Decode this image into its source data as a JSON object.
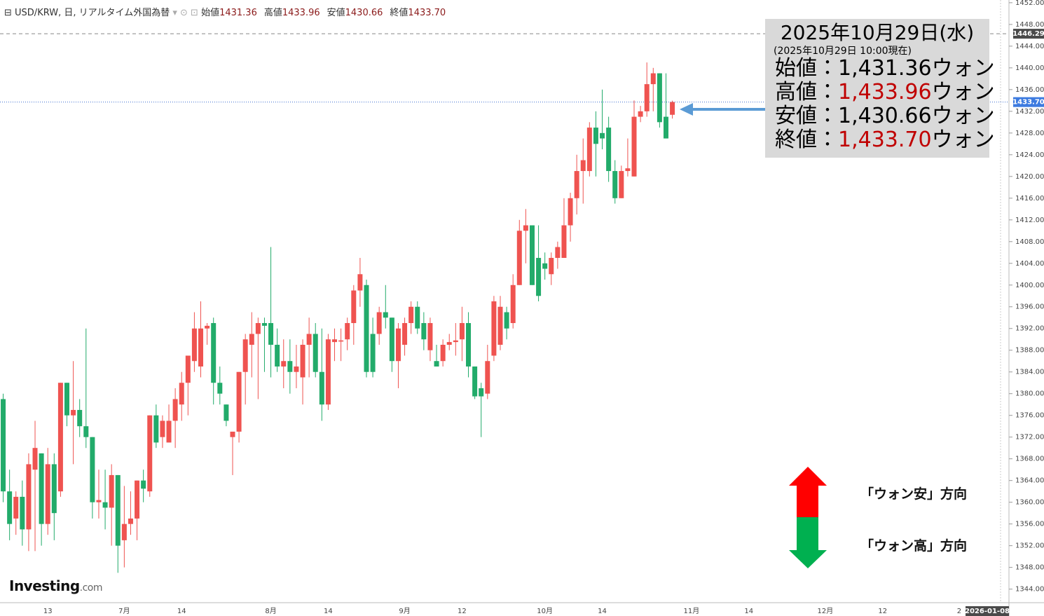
{
  "chart_data": {
    "type": "candlestick",
    "header": {
      "title": "USD/KRW, 日, リアルタイム外国為替",
      "stats": [
        {
          "label": "始値",
          "value": "1431.36"
        },
        {
          "label": "高値",
          "value": "1433.96"
        },
        {
          "label": "安値",
          "value": "1430.66"
        },
        {
          "label": "終値",
          "value": "1433.70"
        }
      ]
    },
    "info_box": {
      "title": "2025年10月29日(水)",
      "subtitle": "(2025年10月29日 10:00現在)",
      "rows": [
        {
          "label": "始値：",
          "value": "1,431.36",
          "unit": "ウォン",
          "color": "#000000"
        },
        {
          "label": "高値：",
          "value": "1,433.96",
          "unit": "ウォン",
          "color": "#c00000"
        },
        {
          "label": "安値：",
          "value": "1,430.66",
          "unit": "ウォン",
          "color": "#000000"
        },
        {
          "label": "終値：",
          "value": "1,433.70",
          "unit": "ウォン",
          "color": "#c00000"
        }
      ]
    },
    "direction_labels": [
      "「ウォン安」方向",
      "「ウォン高」方向"
    ],
    "logo": "Investing",
    "logo_suffix": ".com",
    "cursor_date": "2026-01-08",
    "up_color": "#ef5350",
    "down_color": "#22ab6a",
    "session_high": 1446.29,
    "last_price": {
      "value": 1433.7,
      "label": "1433.70"
    },
    "categories": [
      null,
      null,
      null,
      null,
      null,
      null,
      null,
      "13",
      null,
      null,
      null,
      null,
      null,
      null,
      null,
      null,
      null,
      null,
      null,
      "7月",
      null,
      null,
      null,
      null,
      null,
      null,
      null,
      null,
      "14",
      null,
      null,
      null,
      null,
      null,
      null,
      null,
      null,
      null,
      null,
      null,
      null,
      null,
      "8月",
      null,
      null,
      null,
      null,
      null,
      null,
      null,
      null,
      "14",
      null,
      null,
      null,
      null,
      null,
      null,
      null,
      null,
      null,
      null,
      null,
      "9月",
      null,
      null,
      null,
      null,
      null,
      null,
      null,
      null,
      "12",
      null,
      null,
      null,
      null,
      null,
      null,
      null,
      null,
      null,
      null,
      null,
      null,
      "10月",
      null,
      null,
      null,
      null,
      null,
      null,
      null,
      null,
      "14",
      null,
      null,
      null,
      null,
      null,
      null,
      null,
      null,
      null,
      null,
      null,
      null,
      null,
      "11月",
      null,
      null,
      null,
      null,
      null,
      null,
      null,
      null,
      "14",
      null,
      null,
      null,
      null,
      null,
      null,
      null,
      null,
      null,
      null,
      null,
      "12月",
      null,
      null,
      null,
      null,
      null,
      null,
      null,
      null,
      "12",
      null,
      null,
      null,
      null,
      null,
      null,
      null,
      null,
      null,
      null,
      null,
      "2",
      null,
      null,
      null,
      null,
      null,
      null
    ],
    "open": [
      1379,
      1362,
      1357,
      1361,
      1355,
      1366,
      1369,
      1356,
      1367,
      1362,
      1382,
      1376,
      1377,
      1374,
      1372,
      1360,
      1360,
      1359,
      1365,
      1353,
      1356,
      1357,
      1364,
      1362,
      1376,
      1372,
      1371,
      1375,
      1378,
      1382,
      1386,
      1385,
      1392,
      1393,
      1382,
      1378,
      1372,
      1373,
      1384,
      1389,
      1391,
      1393,
      1393,
      1389,
      1385,
      1386,
      1384,
      1383,
      1389,
      1391,
      1384,
      1378,
      1389.5,
      1389.6,
      1390,
      1393,
      1399,
      1400,
      1391,
      1391,
      1395,
      1394,
      1386,
      1389,
      1393,
      1396,
      1393,
      1388,
      1386,
      1386,
      1389,
      1389.5,
      1390,
      1393,
      1385,
      1381,
      1380,
      1387,
      1389,
      1395,
      1393,
      1400,
      1410,
      1411,
      1405,
      1404,
      1402,
      1405,
      1405,
      1411,
      1416,
      1421,
      1421,
      1429,
      1428,
      1429,
      1421,
      1416,
      1421,
      1420,
      1431,
      1432,
      1437,
      1439,
      1431,
      1431.36,
      null,
      null,
      null,
      null,
      null,
      null,
      null,
      null,
      null,
      null,
      null,
      null,
      null,
      null,
      null,
      null,
      null,
      null,
      null,
      null,
      null,
      null,
      null,
      null,
      null,
      null,
      null,
      null,
      null,
      null,
      null,
      null,
      null,
      null,
      null,
      null,
      null,
      null,
      null,
      null,
      null,
      null,
      null,
      null,
      null,
      null,
      null,
      null,
      null,
      null,
      null
    ],
    "high": [
      1380,
      1366,
      1362,
      1364,
      1369,
      1375,
      1369,
      1370,
      1369,
      1382,
      1382,
      1386,
      1379,
      1392,
      1372,
      1366,
      1366,
      1367,
      1365,
      1363,
      1362,
      1364,
      1366,
      1376,
      1378,
      1376,
      1378,
      1381,
      1384,
      1387,
      1395,
      1397,
      1393,
      1394,
      1385,
      1378,
      1373,
      1384,
      1391,
      1395,
      1394,
      1394,
      1407,
      1392,
      1390,
      1390,
      1389,
      1390,
      1394,
      1393,
      1392,
      1391,
      1392,
      1392,
      1394,
      1400,
      1405,
      1401,
      1394,
      1396,
      1400,
      1394,
      1393,
      1394,
      1397,
      1397,
      1395,
      1394,
      1389,
      1390,
      1391,
      1393,
      1396,
      1395,
      1385,
      1382,
      1389,
      1398,
      1398,
      1396,
      1402,
      1412,
      1414,
      1411,
      1411,
      1406,
      1406,
      1408,
      1416,
      1417,
      1424,
      1427,
      1430,
      1432,
      1436,
      1431,
      1423,
      1422,
      1427,
      1434,
      1433,
      1441,
      1440,
      1439,
      1439,
      1433.96,
      null,
      null,
      null,
      null,
      null,
      null,
      null,
      null,
      null,
      null,
      null,
      null,
      null,
      null,
      null,
      null,
      null,
      null,
      null,
      null,
      null,
      null,
      null,
      null,
      null,
      null,
      null,
      null,
      null,
      null,
      null,
      null,
      null,
      null,
      null,
      null,
      null,
      null,
      null,
      null,
      null,
      null,
      null,
      null,
      null,
      null,
      null,
      null,
      null,
      null,
      null
    ],
    "low": [
      1360,
      1353,
      1354,
      1352,
      1351,
      1351,
      1352,
      1354,
      1353,
      1361,
      1374,
      1367,
      1372,
      1370,
      1357,
      1357,
      1355,
      1352,
      1347,
      1348,
      1354,
      1353,
      1360,
      1361,
      1370,
      1370,
      1371,
      1370,
      1375,
      1376,
      1384,
      1383,
      1389,
      1378,
      1378,
      1374,
      1365,
      1371,
      1378,
      1383,
      1379,
      1384,
      1383,
      1384,
      1381,
      1380,
      1381,
      1378,
      1383,
      1383,
      1375,
      1377,
      1386,
      1386,
      1388,
      1389,
      1396,
      1383,
      1383,
      1389,
      1392,
      1384,
      1381,
      1387,
      1391,
      1391,
      1388,
      1386,
      1385,
      1385,
      1388,
      1387,
      1386,
      1383,
      1379,
      1372,
      1379,
      1386,
      1388,
      1390,
      1392,
      1400,
      1404,
      1400,
      1397,
      1401,
      1400,
      1403,
      1405,
      1408,
      1413,
      1415,
      1420,
      1420,
      1425,
      1419,
      1415,
      1416,
      1420,
      1420,
      1430,
      1431,
      1432,
      1429,
      1427,
      1430.66,
      null,
      null,
      null,
      null,
      null,
      null,
      null,
      null,
      null,
      null,
      null,
      null,
      null,
      null,
      null,
      null,
      null,
      null,
      null,
      null,
      null,
      null,
      null,
      null,
      null,
      null,
      null,
      null,
      null,
      null,
      null,
      null,
      null,
      null,
      null,
      null,
      null,
      null,
      null,
      null,
      null,
      null,
      null,
      null,
      null,
      null,
      null,
      null,
      null,
      null,
      null
    ],
    "close": [
      1362,
      1356,
      1361,
      1355,
      1367,
      1370,
      1356,
      1367,
      1358,
      1382,
      1376,
      1377,
      1374,
      1372,
      1360,
      1360.4,
      1359,
      1365,
      1352,
      1356,
      1357,
      1364,
      1362.5,
      1376,
      1371,
      1375,
      1375,
      1379,
      1382,
      1387,
      1392,
      1392,
      1392.5,
      1382,
      1380,
      1375,
      1373,
      1384,
      1390,
      1391,
      1393,
      1392.5,
      1389,
      1385,
      1386,
      1384,
      1385,
      1389,
      1391,
      1384,
      1378,
      1390,
      1390,
      1389.8,
      1393,
      1399,
      1402,
      1384,
      1384,
      1395,
      1394,
      1386,
      1392,
      1393,
      1396,
      1392,
      1390,
      1393,
      1385,
      1389,
      1389.5,
      1389.8,
      1393,
      1385,
      1379.5,
      1379.5,
      1386,
      1397,
      1396,
      1392,
      1400,
      1410,
      1411,
      1400,
      1398,
      1403,
      1405,
      1407,
      1411,
      1416,
      1421,
      1423,
      1429,
      1426,
      1427,
      1421,
      1416,
      1421,
      1421.5,
      1431,
      1432,
      1437,
      1439,
      1430,
      1427,
      1433.7,
      null,
      null,
      null,
      null,
      null,
      null,
      null,
      null,
      null,
      null,
      null,
      null,
      null,
      null,
      null,
      null,
      null,
      null,
      null,
      null,
      null,
      null,
      null,
      null,
      null,
      null,
      null,
      null,
      null,
      null,
      null,
      null,
      null,
      null,
      null,
      null,
      null,
      null,
      null,
      null,
      null,
      null,
      null,
      null,
      null,
      null,
      null,
      null,
      null,
      null,
      null
    ],
    "ylim": [
      1341.5,
      1452.5
    ],
    "yticks": [
      {
        "value": 1344,
        "label": "1344.00"
      },
      {
        "value": 1348,
        "label": "1348.00"
      },
      {
        "value": 1352,
        "label": "1352.00"
      },
      {
        "value": 1356,
        "label": "1356.00"
      },
      {
        "value": 1360,
        "label": "1360.00"
      },
      {
        "value": 1364,
        "label": "1364.00"
      },
      {
        "value": 1368,
        "label": "1368.00"
      },
      {
        "value": 1372,
        "label": "1372.00"
      },
      {
        "value": 1376,
        "label": "1376.00"
      },
      {
        "value": 1380,
        "label": "1380.00"
      },
      {
        "value": 1384,
        "label": "1384.00"
      },
      {
        "value": 1388,
        "label": "1388.00"
      },
      {
        "value": 1392,
        "label": "1392.00"
      },
      {
        "value": 1396,
        "label": "1396.00"
      },
      {
        "value": 1400,
        "label": "1400.00"
      },
      {
        "value": 1404,
        "label": "1404.00"
      },
      {
        "value": 1408,
        "label": "1408.00"
      },
      {
        "value": 1412,
        "label": "1412.00"
      },
      {
        "value": 1416,
        "label": "1416.00"
      },
      {
        "value": 1420,
        "label": "1420.00"
      },
      {
        "value": 1424,
        "label": "1424.00"
      },
      {
        "value": 1428,
        "label": "1428.00"
      },
      {
        "value": 1432,
        "label": "1432.00"
      },
      {
        "value": 1436,
        "label": "1436.00"
      },
      {
        "value": 1440,
        "label": "1440.00"
      },
      {
        "value": 1444,
        "label": "1444.00"
      },
      {
        "value": 1448,
        "label": "1448.00"
      },
      {
        "value": 1452,
        "label": "1452.00"
      }
    ],
    "grid": false
  }
}
